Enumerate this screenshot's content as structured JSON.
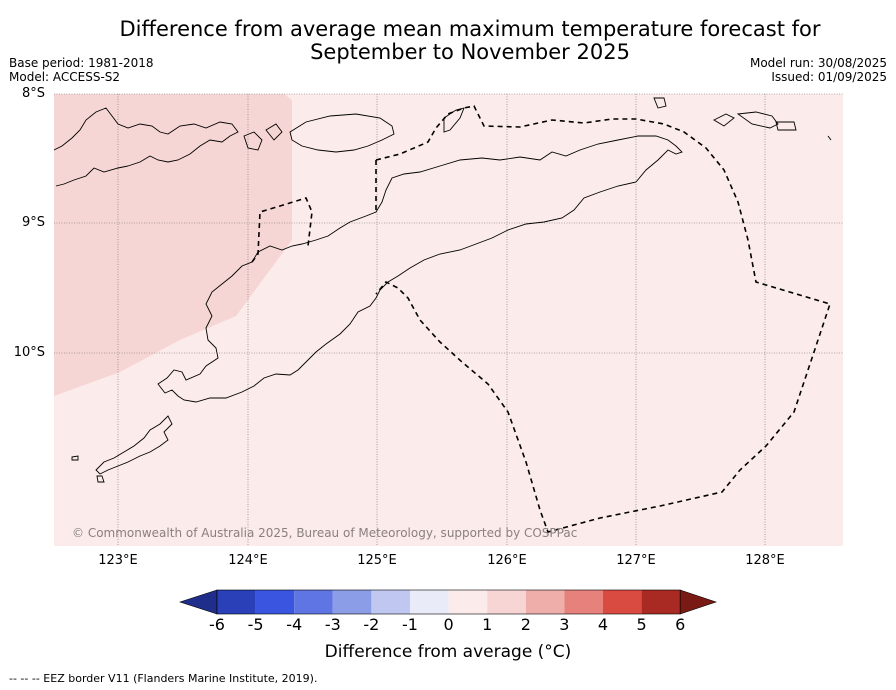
{
  "title_line1": "Difference from average mean maximum temperature forecast for",
  "title_line2": "September to November 2025",
  "meta_left": {
    "base_period": "Base period: 1981-2018",
    "model": "Model: ACCESS-S2"
  },
  "meta_right": {
    "model_run": "Model run: 30/08/2025",
    "issued": "Issued: 01/09/2025"
  },
  "lat_labels": [
    "8°S",
    "9°S",
    "10°S"
  ],
  "lon_labels": [
    "123°E",
    "124°E",
    "125°E",
    "126°E",
    "127°E",
    "128°E"
  ],
  "copyright": "© Commonwealth of Australia 2025, Bureau of Meteorology, supported by COSPPac",
  "colorbar": {
    "ticks": [
      "-6",
      "-5",
      "-4",
      "-3",
      "-2",
      "-1",
      "0",
      "1",
      "2",
      "3",
      "4",
      "5",
      "6"
    ],
    "colors": [
      "#1f2e8a",
      "#2a40b8",
      "#3a55e0",
      "#5f75e3",
      "#8c9de8",
      "#c0c8f2",
      "#e9ebf9",
      "#fcebeb",
      "#f6d5d4",
      "#efaeaa",
      "#e6817c",
      "#d94a40",
      "#a82a22",
      "#7a1a14"
    ],
    "label": "Difference from average (°C)"
  },
  "legend_footnote": "-- -- -- EEZ border V11 (Flanders Marine Institute, 2019).",
  "map_colors": {
    "light_band": "#fbebea",
    "darker_band": "#f6d6d4"
  }
}
